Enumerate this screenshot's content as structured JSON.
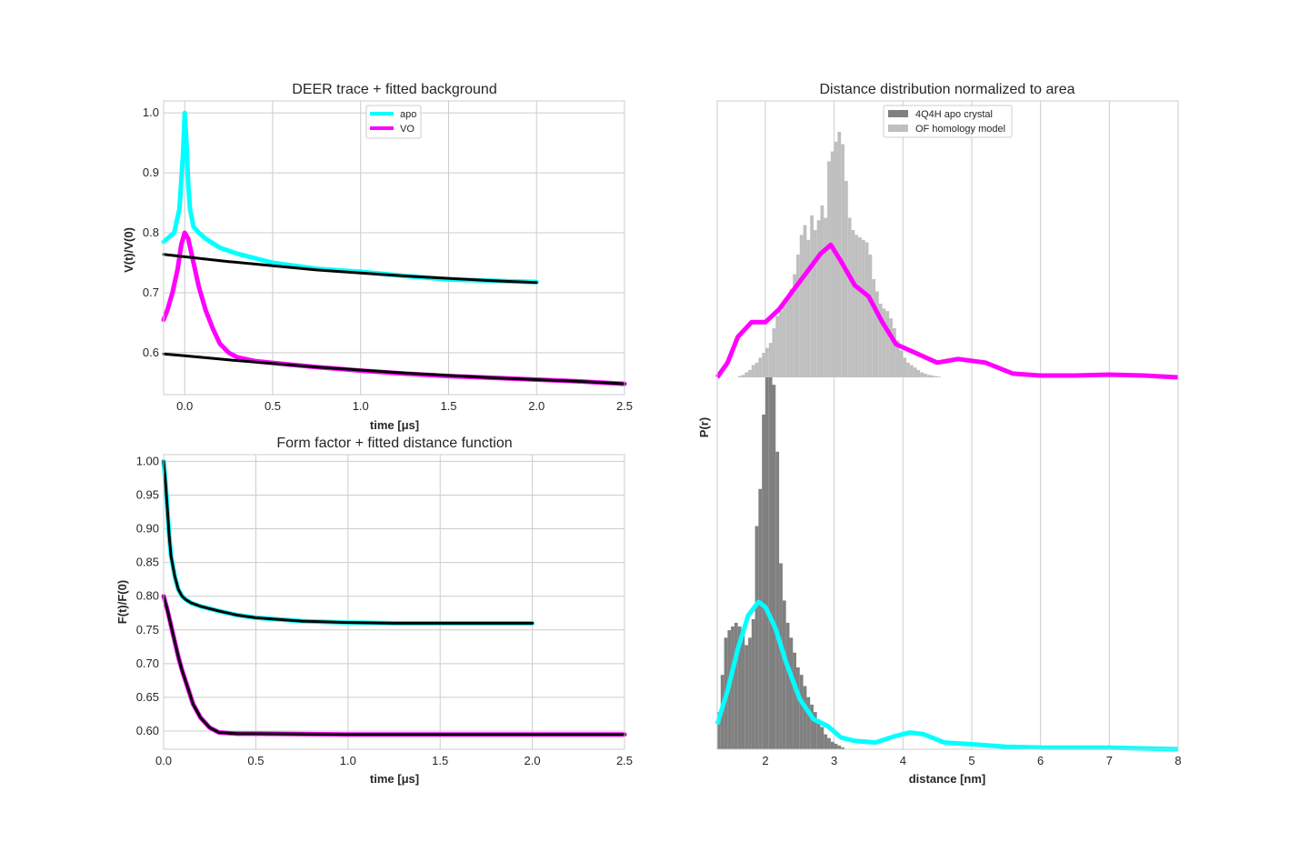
{
  "colors": {
    "apo": "#00ffff",
    "vo": "#ff00ff",
    "fit": "#000000",
    "crystal": "#808080",
    "homology": "#bfbfbf",
    "grid": "#cccccc"
  },
  "chart_data": [
    {
      "type": "line",
      "title": "DEER trace + fitted background",
      "xlabel": "time [μs]",
      "ylabel": "V(t)/V(0)",
      "xlim": [
        -0.12,
        2.5
      ],
      "ylim": [
        0.53,
        1.02
      ],
      "xticks": [
        "0.0",
        "0.5",
        "1.0",
        "1.5",
        "2.0",
        "2.5"
      ],
      "yticks": [
        "0.6",
        "0.7",
        "0.8",
        "0.9",
        "1.0"
      ],
      "legend": "top-center",
      "grid": true,
      "series": [
        {
          "name": "apo",
          "x": [
            -0.12,
            -0.1,
            -0.06,
            -0.03,
            -0.01,
            0.0,
            0.01,
            0.02,
            0.03,
            0.05,
            0.08,
            0.12,
            0.2,
            0.3,
            0.5,
            0.75,
            1.0,
            1.25,
            1.5,
            1.75,
            2.0
          ],
          "y": [
            0.785,
            0.79,
            0.8,
            0.84,
            0.93,
            1.0,
            0.95,
            0.88,
            0.84,
            0.81,
            0.8,
            0.79,
            0.775,
            0.765,
            0.75,
            0.74,
            0.735,
            0.728,
            0.722,
            0.72,
            0.718
          ]
        },
        {
          "name": "VO",
          "x": [
            -0.12,
            -0.1,
            -0.07,
            -0.04,
            -0.02,
            0.0,
            0.02,
            0.05,
            0.08,
            0.12,
            0.16,
            0.2,
            0.25,
            0.3,
            0.4,
            0.5,
            0.75,
            1.0,
            1.25,
            1.5,
            1.75,
            2.0,
            2.25,
            2.5
          ],
          "y": [
            0.655,
            0.67,
            0.7,
            0.74,
            0.78,
            0.8,
            0.79,
            0.75,
            0.71,
            0.67,
            0.64,
            0.615,
            0.6,
            0.592,
            0.586,
            0.583,
            0.576,
            0.57,
            0.565,
            0.561,
            0.558,
            0.555,
            0.552,
            0.548
          ]
        },
        {
          "name": "",
          "x": [
            -0.12,
            0.0,
            0.25,
            0.5,
            0.75,
            1.0,
            1.25,
            1.5,
            1.75,
            2.0
          ],
          "y": [
            0.764,
            0.76,
            0.752,
            0.745,
            0.738,
            0.733,
            0.728,
            0.724,
            0.72,
            0.717
          ]
        },
        {
          "name": "",
          "x": [
            -0.12,
            0.0,
            0.25,
            0.5,
            0.75,
            1.0,
            1.25,
            1.5,
            1.75,
            2.0,
            2.25,
            2.5
          ],
          "y": [
            0.598,
            0.595,
            0.588,
            0.582,
            0.576,
            0.571,
            0.566,
            0.562,
            0.558,
            0.555,
            0.552,
            0.548
          ]
        }
      ]
    },
    {
      "type": "line",
      "title": "Form factor + fitted distance function",
      "xlabel": "time [μs]",
      "ylabel": "F(t)/F(0)",
      "xlim": [
        0,
        2.5
      ],
      "ylim": [
        0.573,
        1.01
      ],
      "xticks": [
        "0.0",
        "0.5",
        "1.0",
        "1.5",
        "2.0",
        "2.5"
      ],
      "yticks": [
        "0.60",
        "0.65",
        "0.70",
        "0.75",
        "0.80",
        "0.85",
        "0.90",
        "0.95",
        "1.00"
      ],
      "grid": true,
      "series": [
        {
          "name": "apo",
          "x": [
            0.0,
            0.01,
            0.02,
            0.03,
            0.04,
            0.06,
            0.08,
            0.1,
            0.12,
            0.15,
            0.2,
            0.3,
            0.4,
            0.5,
            0.75,
            1.0,
            1.25,
            1.5,
            1.75,
            2.0
          ],
          "y": [
            1.0,
            0.97,
            0.93,
            0.89,
            0.86,
            0.83,
            0.81,
            0.8,
            0.795,
            0.79,
            0.785,
            0.778,
            0.772,
            0.768,
            0.763,
            0.761,
            0.76,
            0.76,
            0.76,
            0.76
          ]
        },
        {
          "name": "VO",
          "x": [
            0.0,
            0.02,
            0.05,
            0.08,
            0.1,
            0.13,
            0.16,
            0.2,
            0.25,
            0.3,
            0.4,
            0.5,
            1.0,
            1.5,
            2.0,
            2.5
          ],
          "y": [
            0.8,
            0.78,
            0.745,
            0.71,
            0.69,
            0.665,
            0.64,
            0.62,
            0.605,
            0.598,
            0.596,
            0.596,
            0.595,
            0.595,
            0.595,
            0.595
          ]
        },
        {
          "name": "",
          "x": [
            0.0,
            0.01,
            0.02,
            0.03,
            0.04,
            0.06,
            0.08,
            0.1,
            0.12,
            0.15,
            0.2,
            0.3,
            0.4,
            0.5,
            0.75,
            1.0,
            1.25,
            1.5,
            1.75,
            2.0
          ],
          "y": [
            1.0,
            0.97,
            0.93,
            0.89,
            0.86,
            0.83,
            0.81,
            0.8,
            0.795,
            0.79,
            0.785,
            0.778,
            0.772,
            0.768,
            0.763,
            0.761,
            0.76,
            0.76,
            0.76,
            0.76
          ]
        },
        {
          "name": "",
          "x": [
            0.0,
            0.02,
            0.05,
            0.08,
            0.1,
            0.13,
            0.16,
            0.2,
            0.25,
            0.3,
            0.4,
            0.5,
            1.0,
            1.5,
            2.0,
            2.5
          ],
          "y": [
            0.8,
            0.78,
            0.745,
            0.71,
            0.69,
            0.665,
            0.64,
            0.62,
            0.605,
            0.598,
            0.596,
            0.596,
            0.595,
            0.595,
            0.595,
            0.595
          ]
        }
      ]
    },
    {
      "type": "area",
      "title": "Distance distribution normalized to area",
      "xlabel": "distance [nm]",
      "ylabel": "P(r)",
      "xlim": [
        1.3,
        8
      ],
      "xticks": [
        "2",
        "3",
        "4",
        "5",
        "6",
        "7",
        "8"
      ],
      "legend": "top-center",
      "grid": true,
      "histograms": [
        {
          "name": "4Q4H apo crystal",
          "bins": [
            1.3,
            1.35,
            1.4,
            1.45,
            1.5,
            1.55,
            1.6,
            1.65,
            1.7,
            1.75,
            1.8,
            1.85,
            1.9,
            1.95,
            2.0,
            2.05,
            2.1,
            2.15,
            2.2,
            2.25,
            2.3,
            2.35,
            2.4,
            2.45,
            2.5,
            2.55,
            2.6,
            2.65,
            2.7,
            2.75,
            2.8,
            2.85,
            2.9,
            2.95,
            3.0,
            3.05,
            3.1
          ],
          "values": [
            0.1,
            0.2,
            0.3,
            0.32,
            0.33,
            0.34,
            0.33,
            0.31,
            0.28,
            0.3,
            0.35,
            0.6,
            0.7,
            0.9,
            1.0,
            1.0,
            0.98,
            0.8,
            0.5,
            0.4,
            0.34,
            0.3,
            0.26,
            0.22,
            0.2,
            0.17,
            0.14,
            0.12,
            0.1,
            0.08,
            0.06,
            0.04,
            0.03,
            0.02,
            0.015,
            0.01,
            0.005
          ]
        },
        {
          "name": "OF homology model",
          "bins": [
            1.6,
            1.65,
            1.7,
            1.75,
            1.8,
            1.85,
            1.9,
            1.95,
            2.0,
            2.05,
            2.1,
            2.15,
            2.2,
            2.25,
            2.3,
            2.35,
            2.4,
            2.45,
            2.5,
            2.55,
            2.6,
            2.65,
            2.7,
            2.75,
            2.8,
            2.85,
            2.9,
            2.95,
            3.0,
            3.05,
            3.1,
            3.15,
            3.2,
            3.25,
            3.3,
            3.35,
            3.4,
            3.45,
            3.5,
            3.55,
            3.6,
            3.65,
            3.7,
            3.75,
            3.8,
            3.85,
            3.9,
            3.95,
            4.0,
            4.05,
            4.1,
            4.15,
            4.2,
            4.25,
            4.3,
            4.35,
            4.4,
            4.45,
            4.5
          ],
          "values": [
            0.005,
            0.01,
            0.02,
            0.03,
            0.05,
            0.06,
            0.08,
            0.1,
            0.12,
            0.14,
            0.2,
            0.25,
            0.27,
            0.3,
            0.32,
            0.36,
            0.42,
            0.5,
            0.58,
            0.62,
            0.56,
            0.66,
            0.6,
            0.64,
            0.7,
            0.65,
            0.88,
            0.92,
            0.96,
            1.0,
            0.95,
            0.8,
            0.65,
            0.6,
            0.58,
            0.57,
            0.56,
            0.55,
            0.5,
            0.4,
            0.35,
            0.3,
            0.28,
            0.27,
            0.24,
            0.2,
            0.15,
            0.11,
            0.08,
            0.06,
            0.05,
            0.04,
            0.03,
            0.02,
            0.015,
            0.01,
            0.008,
            0.005,
            0.003
          ]
        }
      ],
      "series": [
        {
          "name": "VO",
          "x": [
            1.3,
            1.45,
            1.6,
            1.8,
            2.0,
            2.2,
            2.4,
            2.6,
            2.8,
            2.95,
            3.1,
            3.3,
            3.5,
            3.7,
            3.9,
            4.2,
            4.5,
            4.8,
            5.2,
            5.6,
            6.0,
            6.5,
            7.0,
            7.5,
            8.0
          ],
          "y": [
            0.0,
            0.08,
            0.22,
            0.3,
            0.3,
            0.37,
            0.47,
            0.57,
            0.67,
            0.72,
            0.63,
            0.5,
            0.44,
            0.3,
            0.18,
            0.13,
            0.08,
            0.1,
            0.08,
            0.02,
            0.01,
            0.01,
            0.015,
            0.01,
            0.0
          ]
        },
        {
          "name": "apo",
          "x": [
            1.3,
            1.45,
            1.6,
            1.75,
            1.9,
            2.0,
            2.15,
            2.3,
            2.5,
            2.7,
            2.9,
            3.1,
            3.3,
            3.6,
            3.9,
            4.1,
            4.3,
            4.6,
            5.0,
            5.5,
            6.0,
            6.5,
            7.0,
            7.5,
            8.0
          ],
          "y": [
            0.15,
            0.35,
            0.6,
            0.8,
            0.88,
            0.85,
            0.72,
            0.52,
            0.3,
            0.18,
            0.14,
            0.07,
            0.05,
            0.04,
            0.08,
            0.1,
            0.09,
            0.04,
            0.03,
            0.015,
            0.01,
            0.01,
            0.01,
            0.005,
            0.0
          ]
        }
      ]
    }
  ]
}
